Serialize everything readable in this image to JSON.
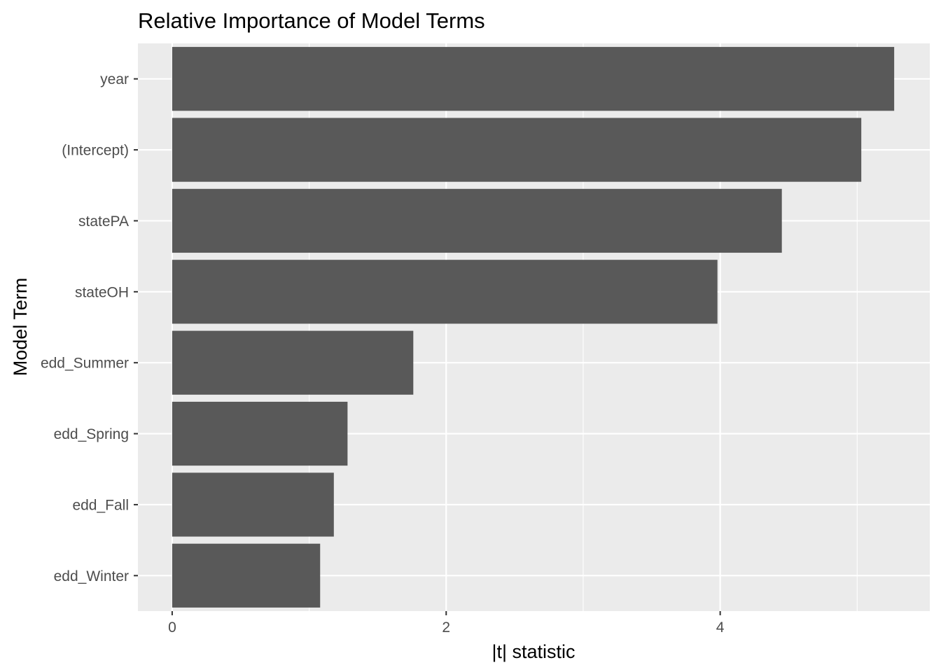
{
  "chart_data": {
    "type": "bar",
    "orientation": "horizontal",
    "title": "Relative Importance of Model Terms",
    "xlabel": "|t| statistic",
    "ylabel": "Model Term",
    "categories": [
      "year",
      "(Intercept)",
      "statePA",
      "stateOH",
      "edd_Summer",
      "edd_Spring",
      "edd_Fall",
      "edd_Winter"
    ],
    "values": [
      5.27,
      5.03,
      4.45,
      3.98,
      1.76,
      1.28,
      1.18,
      1.08
    ],
    "xlim": [
      -0.25,
      5.53
    ],
    "xticks": [
      0,
      2,
      4
    ],
    "grid": true,
    "legend": "none",
    "colors": {
      "bar": "#595959",
      "panel": "#ebebeb",
      "grid": "#ffffff",
      "tick_label": "#4d4d4d",
      "tick": "#333333"
    }
  }
}
